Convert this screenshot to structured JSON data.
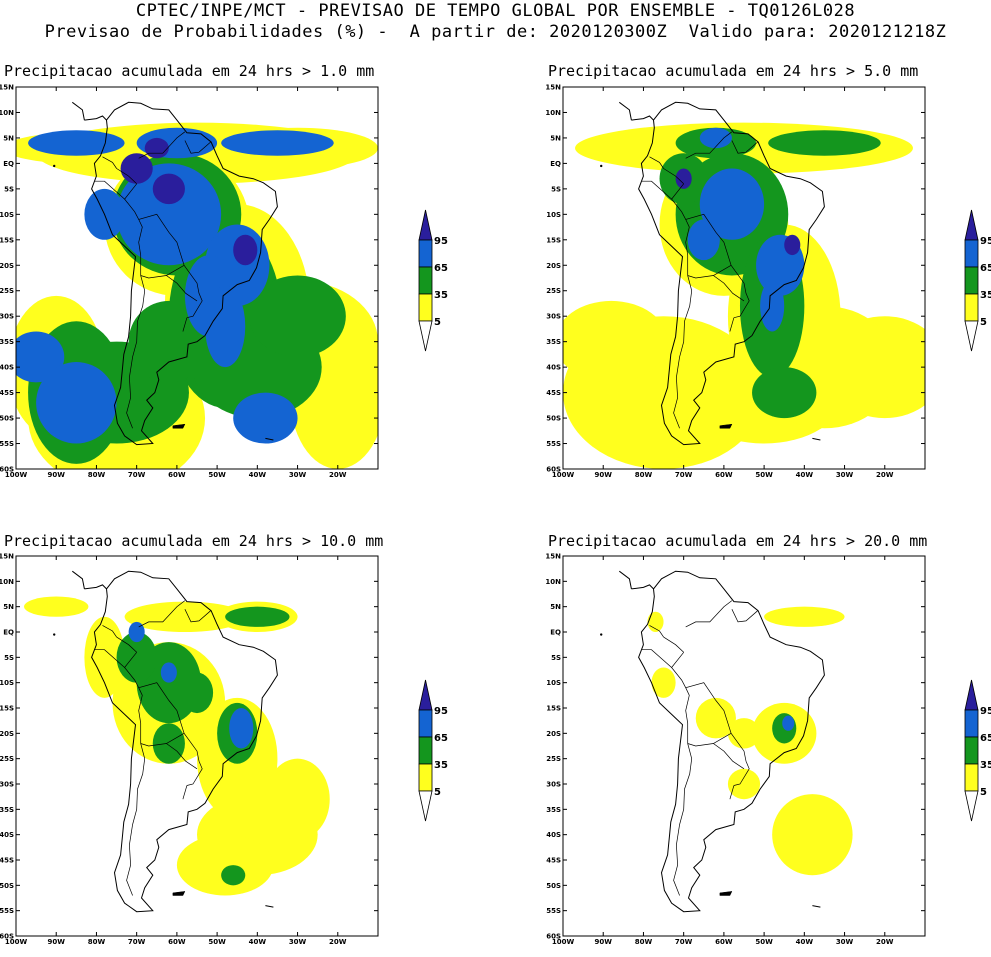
{
  "header": {
    "line1": "CPTEC/INPE/MCT - PREVISAO DE TEMPO GLOBAL POR ENSEMBLE - TQ0126L028",
    "line2": "Previsao de Probabilidades (%) -  A partir de: 2020120300Z  Valido para: 2020121218Z"
  },
  "colors": {
    "very_high": "#2a1e9c",
    "high": "#1464d2",
    "medium": "#14961e",
    "low": "#ffff1e",
    "none": "#ffffff",
    "coast": "#000000"
  },
  "legend": {
    "thresholds": [
      "95",
      "65",
      "35",
      "5"
    ]
  },
  "axes": {
    "lat_labels": [
      "15N",
      "10N",
      "5N",
      "EQ",
      "5S",
      "10S",
      "15S",
      "20S",
      "25S",
      "30S",
      "35S",
      "40S",
      "45S",
      "50S",
      "55S",
      "60S"
    ],
    "lon_labels": [
      "100W",
      "90W",
      "80W",
      "70W",
      "60W",
      "50W",
      "40W",
      "30W",
      "20W"
    ],
    "lon_range": [
      -100,
      -10
    ],
    "lat_range": [
      -60,
      15
    ]
  },
  "panels": [
    {
      "title": "Precipitacao acumulada em 24 hrs > 1.0 mm",
      "threshold_mm": 1.0,
      "coverage": "extensive"
    },
    {
      "title": "Precipitacao acumulada em 24 hrs > 5.0 mm",
      "threshold_mm": 5.0,
      "coverage": "moderate"
    },
    {
      "title": "Precipitacao acumulada em 24 hrs > 10.0 mm",
      "threshold_mm": 10.0,
      "coverage": "limited"
    },
    {
      "title": "Precipitacao acumulada em 24 hrs > 20.0 mm",
      "threshold_mm": 20.0,
      "coverage": "sparse"
    }
  ]
}
